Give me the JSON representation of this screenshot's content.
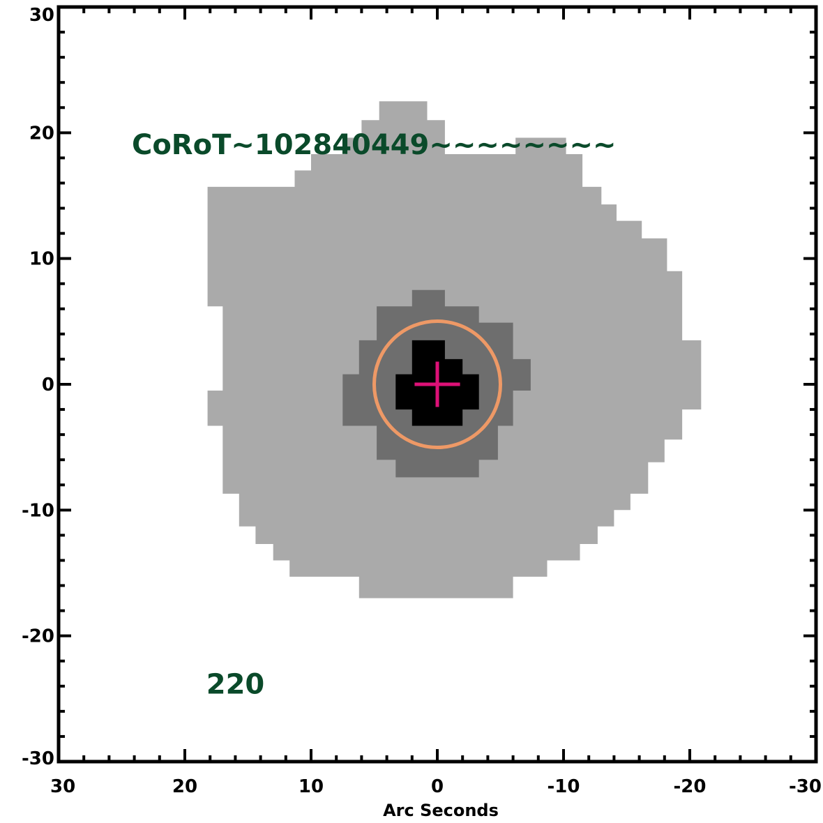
{
  "chart_data": {
    "type": "image",
    "xlabel": "Arc Seconds",
    "ylabel": "",
    "xlim": [
      30,
      -30
    ],
    "ylim": [
      -30,
      30
    ],
    "x_ticks": [
      30,
      20,
      10,
      0,
      -10,
      -20,
      -30
    ],
    "y_ticks": [
      30,
      20,
      10,
      0,
      -10,
      -20,
      -30
    ],
    "x_tick_labels": [
      "30",
      "20",
      "10",
      "0",
      "-10",
      "-20",
      "-30"
    ],
    "y_tick_labels": [
      "30",
      "20",
      "10",
      "0",
      "-10",
      "-20",
      "-30"
    ],
    "annotations": [
      {
        "text": "CoRoT~102840449~~~~~~~~",
        "x": 24.2,
        "y": 18.3
      },
      {
        "text": "220",
        "x": 18.3,
        "y": -24.6
      }
    ],
    "regions": [
      {
        "name": "outer mask",
        "color": "#aaaaaa",
        "polygon": [
          [
            3.3,
            24
          ],
          [
            2.0,
            24
          ],
          [
            2.0,
            22.5
          ],
          [
            4.6,
            22.5
          ],
          [
            4.6,
            21
          ],
          [
            6.0,
            21
          ],
          [
            6.0,
            19.6
          ],
          [
            7.3,
            19.6
          ],
          [
            7.3,
            18.3
          ],
          [
            10.0,
            18.3
          ],
          [
            10.0,
            17
          ],
          [
            11.3,
            17
          ],
          [
            11.3,
            15.7
          ],
          [
            18.2,
            15.7
          ],
          [
            18.2,
            6.2
          ],
          [
            17.0,
            6.2
          ],
          [
            17.0,
            -0.5
          ],
          [
            18.2,
            -0.5
          ],
          [
            18.2,
            -3.3
          ],
          [
            17.0,
            -3.3
          ],
          [
            17.0,
            -8.7
          ],
          [
            15.7,
            -8.7
          ],
          [
            15.7,
            -11.3
          ],
          [
            14.4,
            -11.3
          ],
          [
            14.4,
            -12.7
          ],
          [
            13.0,
            -12.7
          ],
          [
            13.0,
            -14.0
          ],
          [
            11.7,
            -14.0
          ],
          [
            11.7,
            -15.3
          ],
          [
            10.3,
            -15.3
          ],
          [
            10.3,
            -15.3
          ],
          [
            6.2,
            -15.3
          ],
          [
            6.2,
            -17.0
          ],
          [
            -6.0,
            -17.0
          ],
          [
            -6.0,
            -15.3
          ],
          [
            -8.7,
            -15.3
          ],
          [
            -8.7,
            -14.0
          ],
          [
            -11.3,
            -14.0
          ],
          [
            -11.3,
            -12.7
          ],
          [
            -12.7,
            -12.7
          ],
          [
            -12.7,
            -11.3
          ],
          [
            -14.0,
            -11.3
          ],
          [
            -14.0,
            -10.0
          ],
          [
            -15.3,
            -10.0
          ],
          [
            -15.3,
            -8.7
          ],
          [
            -16.7,
            -8.7
          ],
          [
            -16.7,
            -6.2
          ],
          [
            -18.0,
            -6.2
          ],
          [
            -18.0,
            -4.4
          ],
          [
            -19.4,
            -4.4
          ],
          [
            -19.4,
            -2.0
          ],
          [
            -20.9,
            -2.0
          ],
          [
            -20.9,
            3.5
          ],
          [
            -19.4,
            3.5
          ],
          [
            -19.4,
            9.0
          ],
          [
            -18.2,
            9.0
          ],
          [
            -18.2,
            11.6
          ],
          [
            -16.2,
            11.6
          ],
          [
            -16.2,
            13.0
          ],
          [
            -14.2,
            13.0
          ],
          [
            -14.2,
            14.3
          ],
          [
            -13.0,
            14.3
          ],
          [
            -13.0,
            15.7
          ],
          [
            -11.5,
            15.7
          ],
          [
            -11.5,
            18.3
          ],
          [
            -10.2,
            18.3
          ],
          [
            -10.2,
            19.6
          ],
          [
            -6.2,
            19.6
          ],
          [
            -6.2,
            18.3
          ],
          [
            -0.6,
            18.3
          ],
          [
            -0.6,
            19.6
          ],
          [
            -0.6,
            19.6
          ],
          [
            -0.6,
            21.0
          ],
          [
            0.8,
            21.0
          ],
          [
            0.8,
            22.5
          ],
          [
            2.0,
            22.5
          ],
          [
            2.0,
            24
          ],
          [
            3.3,
            24
          ]
        ]
      },
      {
        "name": "middle mask",
        "color": "#6e6e6e",
        "polygon": [
          [
            2.0,
            7.5
          ],
          [
            -0.6,
            7.5
          ],
          [
            -0.6,
            6.2
          ],
          [
            -3.3,
            6.2
          ],
          [
            -3.3,
            4.9
          ],
          [
            -6.0,
            4.9
          ],
          [
            -6.0,
            2.0
          ],
          [
            -7.4,
            2.0
          ],
          [
            -7.4,
            -0.5
          ],
          [
            -6.0,
            -0.5
          ],
          [
            -6.0,
            -3.3
          ],
          [
            -4.8,
            -3.3
          ],
          [
            -4.8,
            -6.0
          ],
          [
            -3.3,
            -6.0
          ],
          [
            -3.3,
            -7.4
          ],
          [
            3.3,
            -7.4
          ],
          [
            3.3,
            -6.0
          ],
          [
            4.8,
            -6.0
          ],
          [
            4.8,
            -3.3
          ],
          [
            7.5,
            -3.3
          ],
          [
            7.5,
            0.8
          ],
          [
            6.2,
            0.8
          ],
          [
            6.2,
            3.5
          ],
          [
            4.8,
            3.5
          ],
          [
            4.8,
            6.2
          ],
          [
            2.0,
            6.2
          ],
          [
            2.0,
            7.5
          ]
        ]
      },
      {
        "name": "inner mask",
        "color": "#000000",
        "polygon": [
          [
            2.0,
            3.5
          ],
          [
            -0.6,
            3.5
          ],
          [
            -0.6,
            2.0
          ],
          [
            -2.0,
            2.0
          ],
          [
            -2.0,
            0.8
          ],
          [
            -3.3,
            0.8
          ],
          [
            -3.3,
            -2.0
          ],
          [
            -2.0,
            -2.0
          ],
          [
            -2.0,
            -3.3
          ],
          [
            2.0,
            -3.3
          ],
          [
            2.0,
            -2.0
          ],
          [
            3.3,
            -2.0
          ],
          [
            3.3,
            0.8
          ],
          [
            2.0,
            0.8
          ],
          [
            2.0,
            3.5
          ]
        ]
      }
    ],
    "aperture_circle": {
      "cx": 0,
      "cy": 0,
      "r": 5.0,
      "color": "#ee9966"
    },
    "target_marker": {
      "x": 0,
      "y": 0,
      "size": 1.8,
      "color": "#dd1177"
    },
    "annotation_color": "#0a4a2a"
  }
}
